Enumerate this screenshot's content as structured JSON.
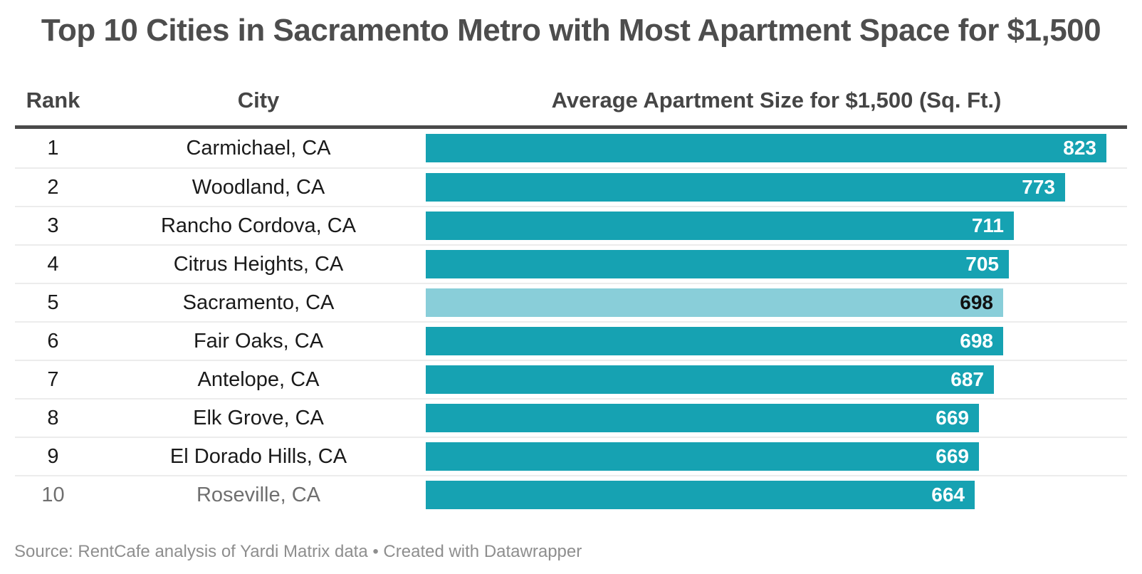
{
  "title": "Top 10 Cities in Sacramento Metro with Most Apartment Space for $1,500",
  "columns": {
    "rank": "Rank",
    "city": "City",
    "value": "Average Apartment Size for $1,500 (Sq. Ft.)"
  },
  "footer": {
    "source": "Source: RentCafe analysis of Yardi Matrix data • Created with Datawrapper"
  },
  "colors": {
    "bar": "#16a2b2",
    "bar_highlight": "#89ced9",
    "bar_label": "#ffffff",
    "bar_label_highlight": "#111111",
    "title_text": "#4d4d4d",
    "header_text": "#454545",
    "body_text": "#1a1a1a",
    "muted_text": "#6f6f6f",
    "footer_text": "#8e8e8e",
    "header_rule": "#4a4a4a",
    "row_divider": "#ececec"
  },
  "chart_data": {
    "type": "bar",
    "orientation": "horizontal",
    "title": "Top 10 Cities in Sacramento Metro with Most Apartment Space for $1,500",
    "value_axis_label": "Average Apartment Size for $1,500 (Sq. Ft.)",
    "ranks": [
      1,
      2,
      3,
      4,
      5,
      6,
      7,
      8,
      9,
      10
    ],
    "categories": [
      "Carmichael, CA",
      "Woodland, CA",
      "Rancho Cordova, CA",
      "Citrus Heights, CA",
      "Sacramento, CA",
      "Fair Oaks, CA",
      "Antelope, CA",
      "Elk Grove, CA",
      "El Dorado Hills, CA",
      "Roseville, CA"
    ],
    "values": [
      823,
      773,
      711,
      705,
      698,
      698,
      687,
      669,
      669,
      664
    ],
    "xlim": [
      0,
      823
    ],
    "highlighted_category": "Sacramento, CA",
    "muted_category": "Roseville, CA",
    "value_labels": "inside-end",
    "grid": false,
    "legend": false
  }
}
